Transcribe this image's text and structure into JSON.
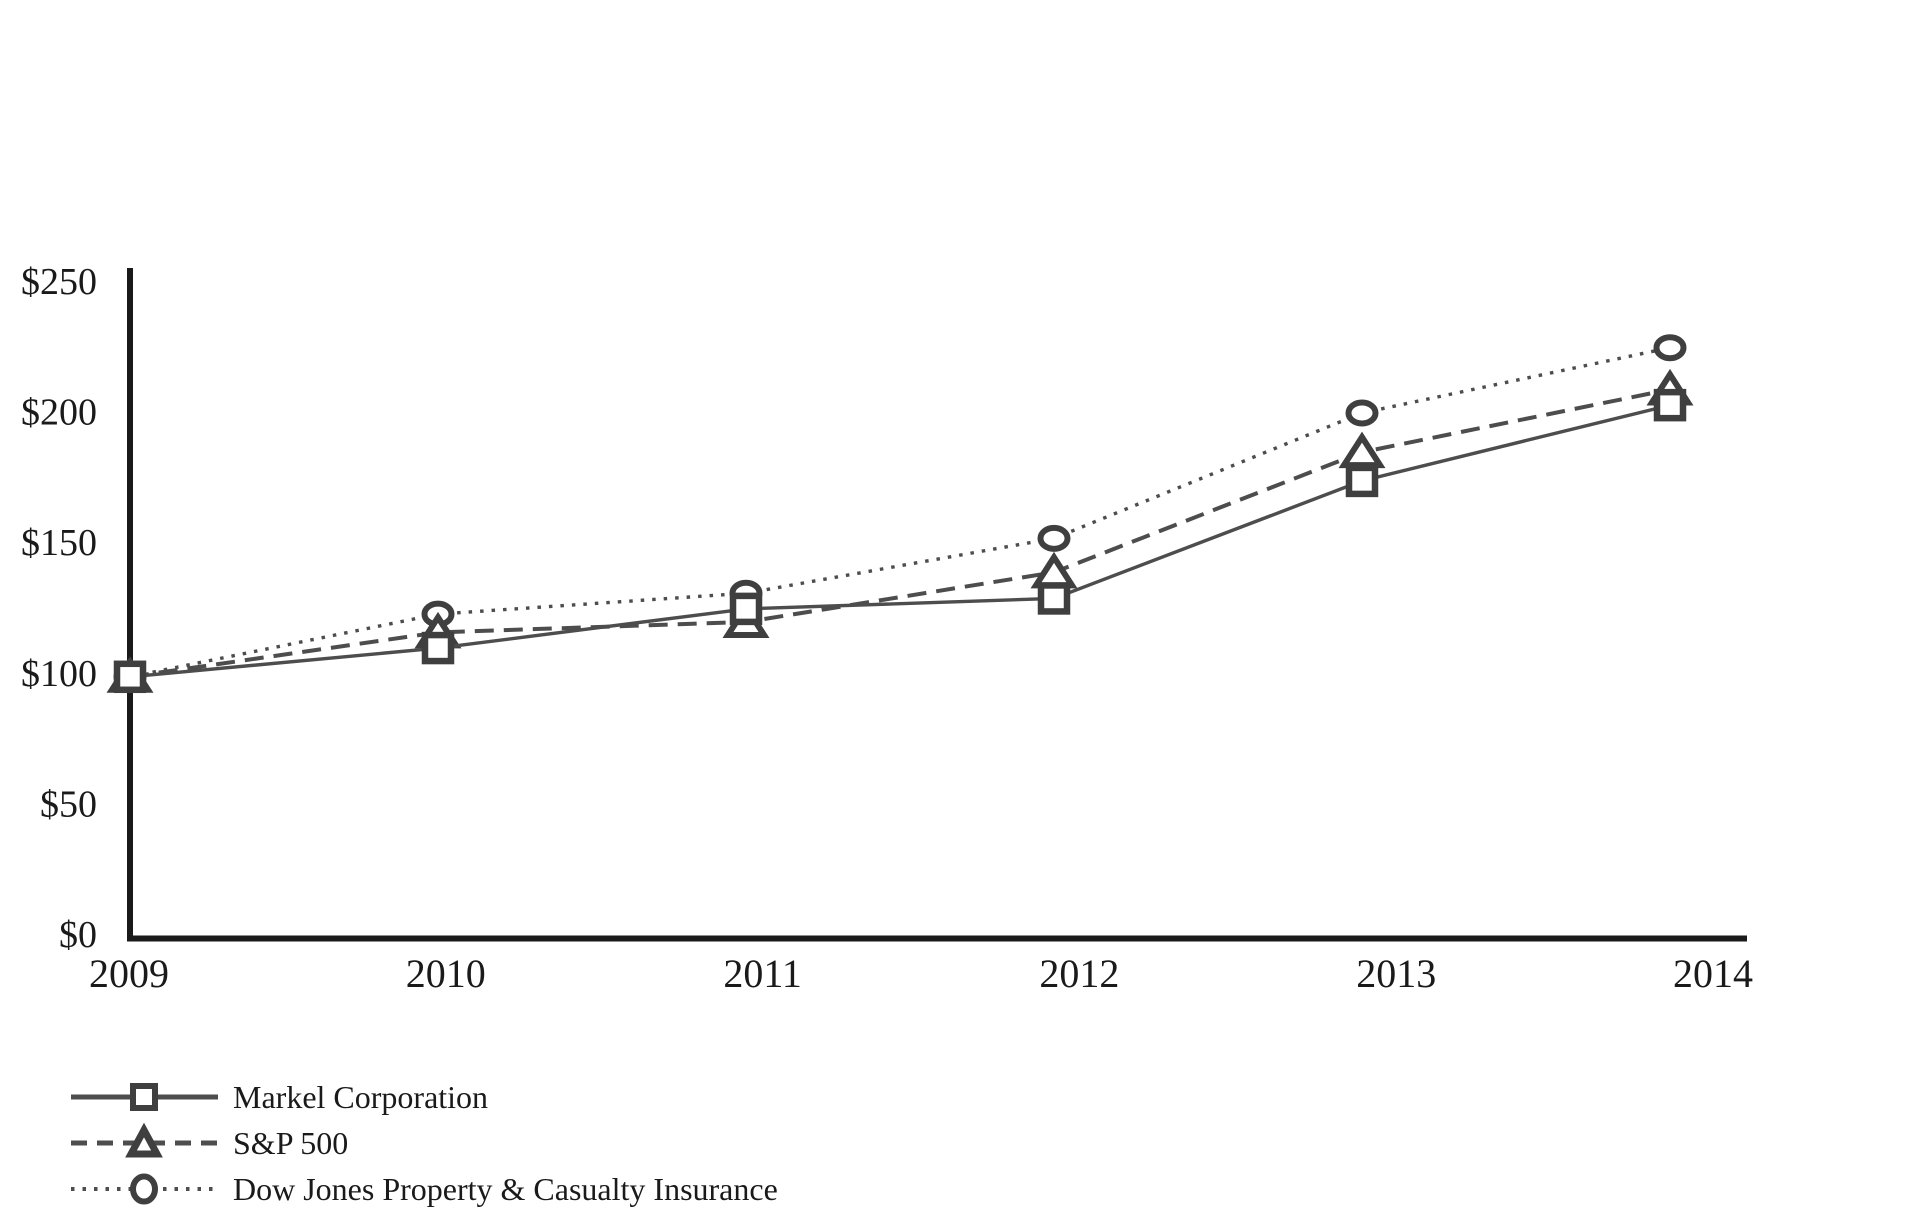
{
  "chart_data": {
    "type": "line",
    "title": "",
    "xlabel": "",
    "ylabel": "",
    "x": [
      2009,
      2010,
      2011,
      2012,
      2013,
      2014
    ],
    "x_tick_labels": [
      "2009",
      "2010",
      "2011",
      "2012",
      "2013",
      "2014"
    ],
    "y_ticks": [
      0,
      50,
      100,
      150,
      200,
      250
    ],
    "y_tick_labels": [
      "$0",
      "$50",
      "$100",
      "$150",
      "$200",
      "$250"
    ],
    "ylim": [
      0,
      250
    ],
    "grid": false,
    "legend_position": "bottom-left",
    "series": [
      {
        "name": "Markel Corporation",
        "marker": "square",
        "line_style": "solid",
        "values": [
          100,
          111,
          126,
          130,
          175,
          204
        ]
      },
      {
        "name": "S&P 500",
        "marker": "triangle",
        "line_style": "dashed",
        "values": [
          100,
          117,
          121,
          140,
          186,
          210
        ]
      },
      {
        "name": "Dow Jones Property & Casualty Insurance",
        "marker": "circle",
        "line_style": "dotted",
        "values": [
          100,
          124,
          132,
          153,
          201,
          226
        ]
      }
    ],
    "colors": {
      "background": "#ffffff",
      "axis": "#1a1a1a",
      "text": "#1a1a1a",
      "line": "#4d4d4d",
      "marker_stroke": "#3f3f3f",
      "marker_fill": "#ffffff"
    }
  }
}
